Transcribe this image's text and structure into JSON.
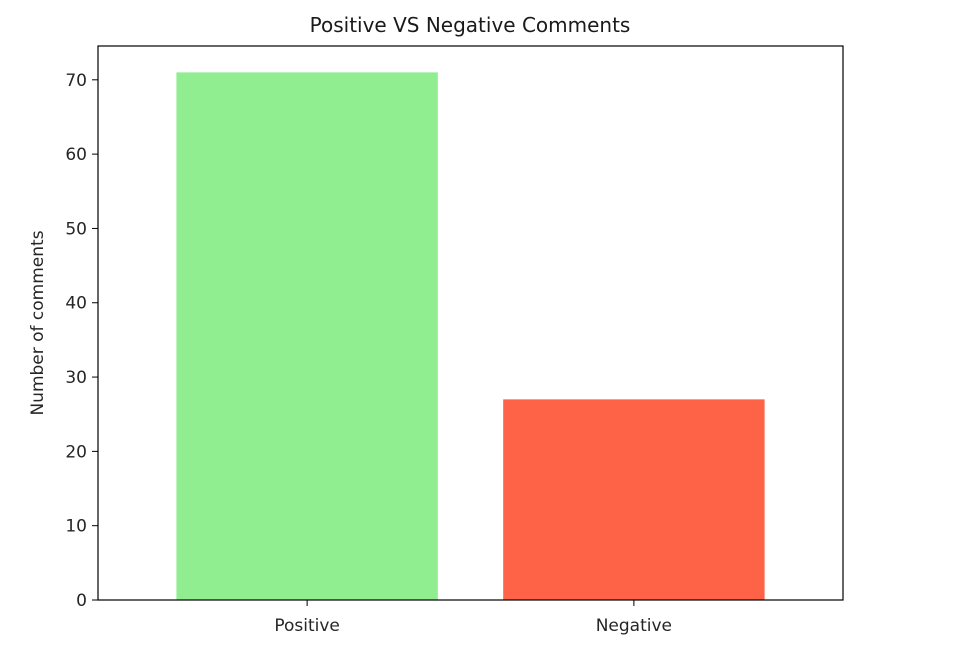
{
  "chart_data": {
    "type": "bar",
    "title": "Positive VS Negative Comments",
    "xlabel": "",
    "ylabel": "Number of comments",
    "categories": [
      "Positive",
      "Negative"
    ],
    "values": [
      71,
      27
    ],
    "colors": [
      "#90ee90",
      "#ff6347"
    ],
    "ylim": [
      0,
      74.55
    ],
    "yticks": [
      0,
      10,
      20,
      30,
      40,
      50,
      60,
      70
    ],
    "grid": false,
    "legend": "none"
  }
}
